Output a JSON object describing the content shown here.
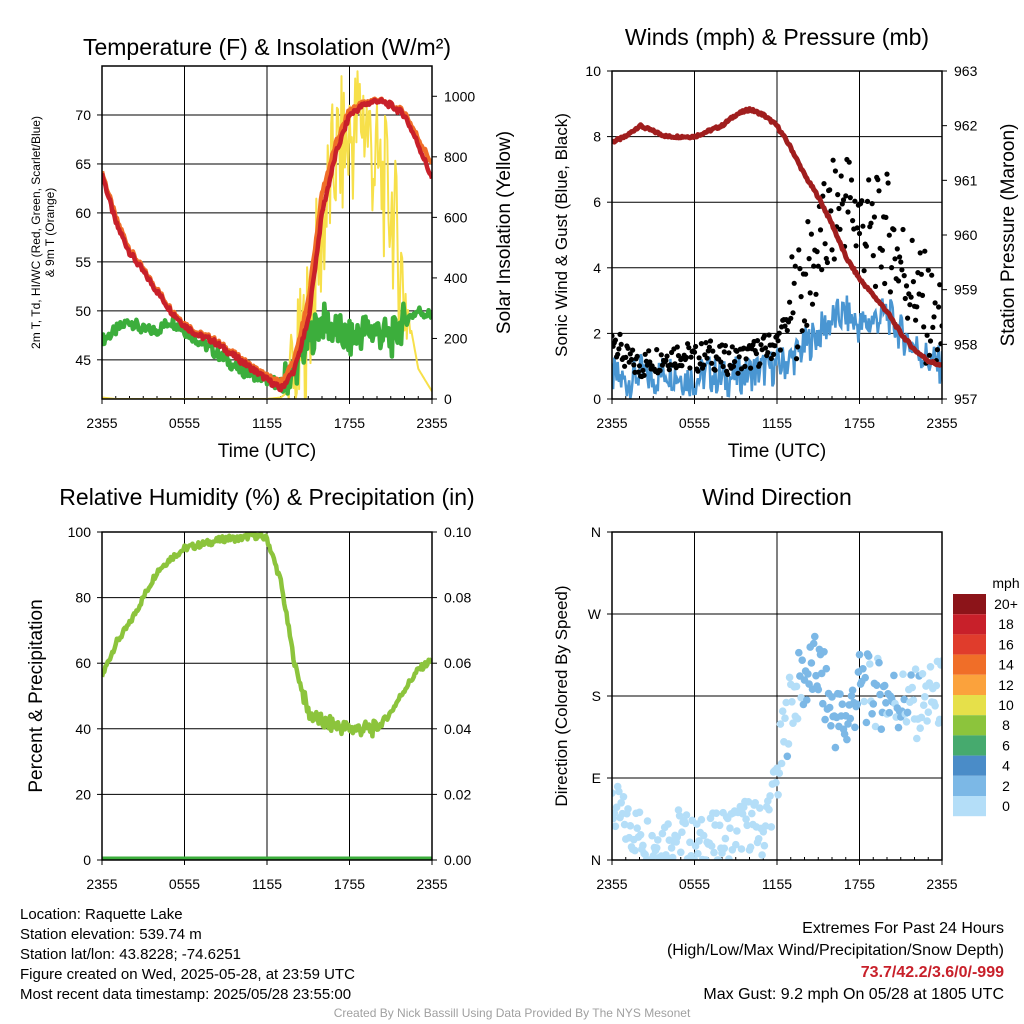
{
  "chart_data": [
    {
      "type": "line",
      "title": "Temperature (F) & Insolation (W/m²)",
      "xlabel": "Time (UTC)",
      "ylabel": "2m T, Td, HI/WC (Red, Green, Scarlet/Blue) & 9m T (Orange)",
      "ylabel_line1": "2m T, Td, HI/WC (Red, Green, Scarlet/Blue)",
      "ylabel_line2": "& 9m T (Orange)",
      "ylabel_right": "Solar Insolation (Yellow)",
      "x_ticks": [
        "2355",
        "0555",
        "1155",
        "1755",
        "2355"
      ],
      "y_ticks": [
        45,
        50,
        55,
        60,
        65,
        70
      ],
      "ylim": [
        41,
        75
      ],
      "y2_ticks": [
        0,
        200,
        400,
        600,
        800,
        1000
      ],
      "y2lim": [
        0,
        1100
      ],
      "x_hours": [
        0,
        1,
        2,
        3,
        4,
        5,
        6,
        7,
        8,
        9,
        10,
        11,
        12,
        13,
        14,
        15,
        16,
        17,
        18,
        19,
        20,
        21,
        22,
        23,
        24
      ],
      "series": [
        {
          "role": "2m T",
          "color": "#c8202a",
          "values": [
            64,
            59,
            56,
            54,
            52,
            50,
            48.5,
            47.5,
            47,
            46,
            45,
            44,
            43,
            42,
            44,
            49,
            60,
            66,
            70,
            71,
            71.5,
            71,
            70,
            67,
            63.5
          ]
        },
        {
          "role": "9m T",
          "color": "#f06e28",
          "values": [
            64.2,
            59.5,
            56.3,
            54.2,
            52.2,
            50.2,
            48.7,
            47.7,
            47.2,
            46.2,
            45.2,
            44.2,
            43.3,
            42.6,
            45,
            51,
            62,
            67,
            70.5,
            71.2,
            71.6,
            71,
            70.3,
            67.6,
            65
          ]
        },
        {
          "role": "Td",
          "color": "#3cae3c",
          "values": [
            47,
            48,
            49,
            48,
            48,
            49,
            48,
            47,
            46,
            45,
            44,
            43.5,
            43,
            42.5,
            44,
            47,
            49,
            48,
            47,
            48,
            48,
            47,
            49,
            50,
            49.5
          ]
        },
        {
          "role": "Insolation",
          "axis": "right",
          "color": "#f7e04a",
          "values": [
            5,
            0,
            0,
            0,
            0,
            0,
            0,
            0,
            0,
            0,
            0,
            0,
            0,
            5,
            40,
            250,
            550,
            800,
            850,
            950,
            750,
            650,
            350,
            100,
            25
          ]
        }
      ]
    },
    {
      "type": "scatter",
      "title": "Winds (mph) & Pressure (mb)",
      "xlabel": "Time (UTC)",
      "ylabel": "Sonic Wind & Gust (Blue, Black)",
      "ylabel_right": "Station Pressure (Maroon)",
      "x_ticks": [
        "2355",
        "0555",
        "1155",
        "1755",
        "2355"
      ],
      "y_ticks": [
        0,
        2,
        4,
        6,
        8,
        10
      ],
      "ylim": [
        0,
        10
      ],
      "y2_ticks": [
        957,
        958,
        959,
        960,
        961,
        962,
        963
      ],
      "y2lim": [
        957,
        963
      ],
      "x_hours": [
        0,
        1,
        2,
        3,
        4,
        5,
        6,
        7,
        8,
        9,
        10,
        11,
        12,
        13,
        14,
        15,
        16,
        17,
        18,
        19,
        20,
        21,
        22,
        23,
        24
      ],
      "series": [
        {
          "role": "Sonic Wind",
          "color": "#4a96d2",
          "values": [
            0.7,
            0.5,
            0.8,
            0.6,
            0.9,
            0.7,
            0.6,
            0.8,
            0.6,
            0.7,
            0.8,
            0.9,
            1.0,
            1.2,
            1.6,
            2.0,
            2.4,
            2.6,
            2.2,
            2.4,
            2.6,
            2.0,
            1.6,
            1.2,
            1.0
          ]
        },
        {
          "role": "Gust",
          "color": "#000000",
          "values": [
            2.0,
            1.2,
            1.0,
            1.2,
            1.3,
            1.4,
            1.2,
            1.4,
            1.2,
            1.2,
            1.3,
            1.5,
            1.7,
            2.6,
            3.5,
            4.5,
            5.5,
            6.2,
            5.4,
            5.0,
            5.2,
            4.2,
            3.4,
            2.6,
            1.8
          ]
        },
        {
          "role": "Pressure",
          "axis": "right",
          "color": "#a01e1e",
          "values": [
            961.7,
            961.8,
            962.0,
            961.9,
            961.8,
            961.8,
            961.8,
            961.9,
            962.0,
            962.2,
            962.3,
            962.2,
            962.0,
            961.6,
            961.1,
            960.7,
            960.2,
            959.6,
            959.2,
            958.9,
            958.6,
            958.2,
            957.9,
            957.7,
            957.6
          ]
        }
      ]
    },
    {
      "type": "line",
      "title": "Relative Humidity (%) & Precipitation (in)",
      "xlabel": "",
      "ylabel": "Percent & Precipitation",
      "x_ticks": [
        "2355",
        "0555",
        "1155",
        "1755",
        "2355"
      ],
      "y_ticks": [
        0,
        20,
        40,
        60,
        80,
        100
      ],
      "ylim": [
        0,
        100
      ],
      "y2_ticks": [
        "0.00",
        "0.02",
        "0.04",
        "0.06",
        "0.08",
        "0.10"
      ],
      "y2lim": [
        0,
        0.1
      ],
      "x_hours": [
        0,
        1,
        2,
        3,
        4,
        5,
        6,
        7,
        8,
        9,
        10,
        11,
        12,
        13,
        14,
        15,
        16,
        17,
        18,
        19,
        20,
        21,
        22,
        23,
        24
      ],
      "series": [
        {
          "role": "RH",
          "color": "#8cc43c",
          "values": [
            56,
            66,
            72,
            80,
            88,
            92,
            95,
            96,
            97,
            98,
            98,
            99,
            98,
            85,
            60,
            45,
            42,
            41,
            40,
            40,
            40,
            45,
            52,
            58,
            61
          ]
        },
        {
          "role": "Precipitation",
          "axis": "right",
          "color": "#3cae3c",
          "values": [
            0,
            0,
            0,
            0,
            0,
            0,
            0,
            0,
            0,
            0,
            0,
            0,
            0,
            0,
            0,
            0,
            0,
            0,
            0,
            0,
            0,
            0,
            0,
            0,
            0
          ]
        }
      ]
    },
    {
      "type": "scatter",
      "title": "Wind Direction",
      "xlabel": "",
      "ylabel": "Direction (Colored By Speed)",
      "x_ticks": [
        "2355",
        "0555",
        "1155",
        "1755",
        "2355"
      ],
      "y_ticks": [
        "N",
        "E",
        "S",
        "W",
        "N"
      ],
      "ylim": [
        0,
        360
      ],
      "x_hours": [
        0,
        1,
        2,
        3,
        4,
        5,
        6,
        7,
        8,
        9,
        10,
        11,
        12,
        13,
        14,
        15,
        16,
        17,
        18,
        19,
        20,
        21,
        22,
        23,
        24
      ],
      "values": [
        60,
        40,
        30,
        20,
        25,
        30,
        15,
        20,
        25,
        35,
        40,
        30,
        90,
        175,
        200,
        210,
        160,
        150,
        190,
        185,
        180,
        175,
        170,
        175,
        185
      ],
      "speeds": [
        0.7,
        0.5,
        0.8,
        0.6,
        0.9,
        0.7,
        0.6,
        0.8,
        0.6,
        0.7,
        0.8,
        0.9,
        1.0,
        1.5,
        2.5,
        3.5,
        3.0,
        3.5,
        2.5,
        2.2,
        2.5,
        2.0,
        1.5,
        1.2,
        1.0
      ]
    }
  ],
  "legend": {
    "unit": "mph",
    "levels": [
      {
        "label": "20+",
        "color": "#8c1419"
      },
      {
        "label": "18",
        "color": "#c8202a"
      },
      {
        "label": "16",
        "color": "#e03c2c"
      },
      {
        "label": "14",
        "color": "#f06e28"
      },
      {
        "label": "12",
        "color": "#fba23c"
      },
      {
        "label": "10",
        "color": "#e6e04a"
      },
      {
        "label": "8",
        "color": "#8cc43c"
      },
      {
        "label": "6",
        "color": "#46aa6e"
      },
      {
        "label": "4",
        "color": "#4a8cc8"
      },
      {
        "label": "2",
        "color": "#7cb8e6"
      },
      {
        "label": "0",
        "color": "#b4def8"
      }
    ]
  },
  "info": {
    "location": "Location: Raquette Lake",
    "elevation": "Station elevation: 539.74 m",
    "latlon": "Station lat/lon: 43.8228; -74.6251",
    "created": "Figure created on Wed, 2025-05-28, at 23:59 UTC",
    "timestamp": "Most recent data timestamp: 2025/05/28 23:55:00"
  },
  "extremes": {
    "title": "Extremes For Past 24 Hours",
    "subtitle": "(High/Low/Max Wind/Precipitation/Snow Depth)",
    "values": "73.7/42.2/3.6/0/-999",
    "gust": "Max Gust: 9.2 mph On 05/28 at 1805 UTC"
  },
  "credit": "Created By Nick Bassill Using Data Provided By The NYS Mesonet"
}
